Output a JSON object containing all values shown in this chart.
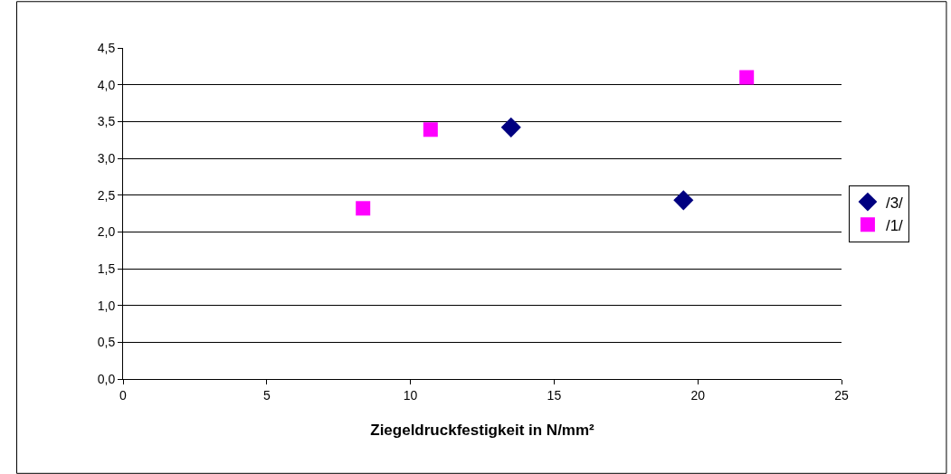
{
  "chart_data": {
    "type": "scatter",
    "xlabel": "Ziegeldruckfestigkeit in N/mm²",
    "series": [
      {
        "name": "/3/",
        "color": "#000080",
        "marker": "diamond",
        "x": [
          13.5,
          19.5
        ],
        "values": [
          3.42,
          2.43
        ]
      },
      {
        "name": "/1/",
        "color": "#ff00ff",
        "marker": "square",
        "x": [
          8.35,
          10.7,
          21.7
        ],
        "values": [
          2.32,
          3.39,
          4.1
        ]
      }
    ],
    "xlim": [
      0,
      25
    ],
    "xticks": [
      0,
      5,
      10,
      15,
      20,
      25
    ],
    "ylim": [
      0,
      4.5
    ],
    "yticks": [
      {
        "value": 0,
        "label": "0,0"
      },
      {
        "value": 0.5,
        "label": "0,5"
      },
      {
        "value": 1,
        "label": "1,0"
      },
      {
        "value": 1.5,
        "label": "1,5"
      },
      {
        "value": 2,
        "label": "2,0"
      },
      {
        "value": 2.5,
        "label": "2,5"
      },
      {
        "value": 3,
        "label": "3,0"
      },
      {
        "value": 3.5,
        "label": "3,5"
      },
      {
        "value": 4,
        "label": "4,0"
      },
      {
        "value": 4.5,
        "label": "4,5"
      }
    ],
    "grid": "y",
    "legend": "right"
  }
}
